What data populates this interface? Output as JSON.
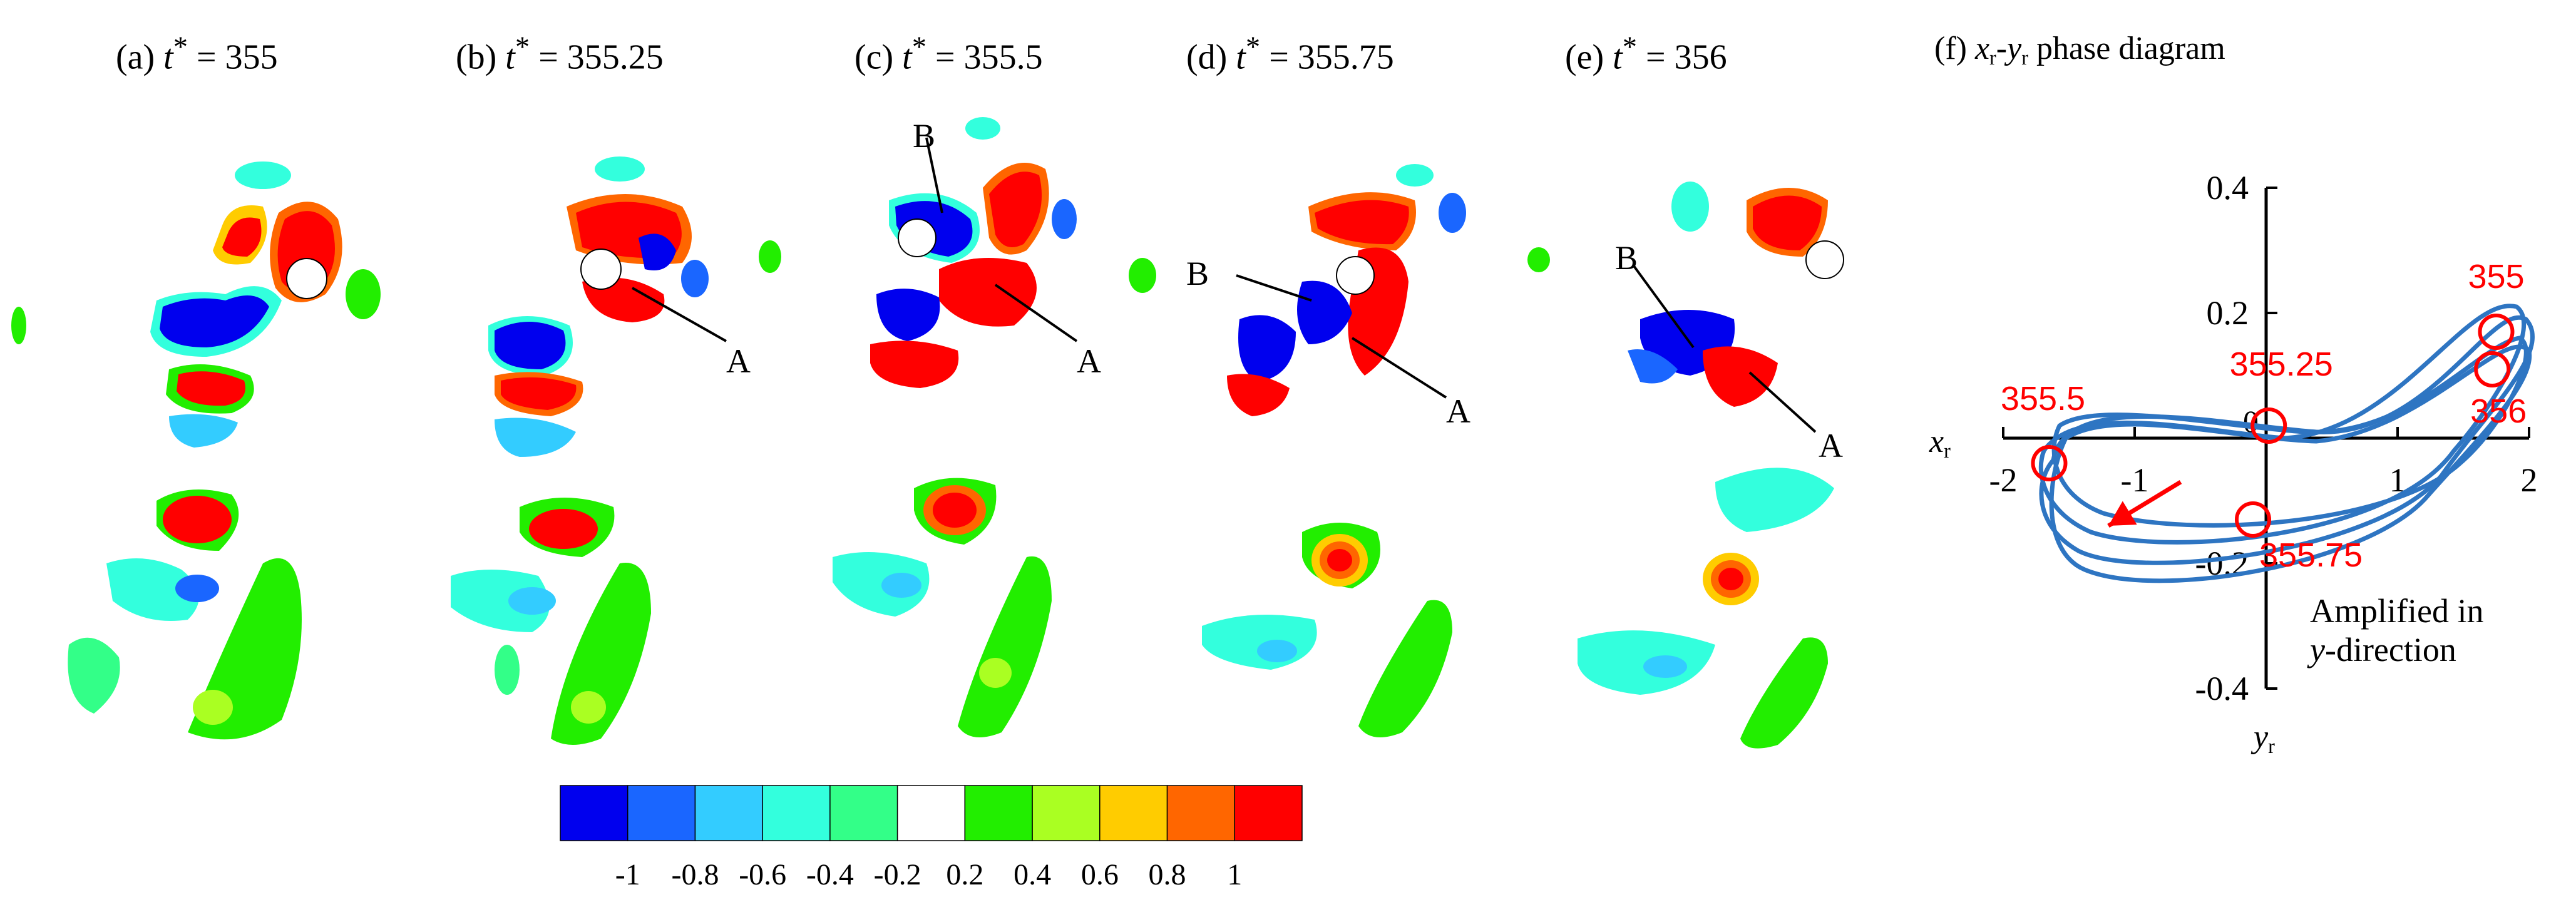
{
  "panels": [
    {
      "id": "a",
      "prefix": "(a) ",
      "var": "t",
      "sup": "*",
      "eq": " = ",
      "value": "355"
    },
    {
      "id": "b",
      "prefix": "(b) ",
      "var": "t",
      "sup": "*",
      "eq": " = ",
      "value": "355.25"
    },
    {
      "id": "c",
      "prefix": "(c) ",
      "var": "t",
      "sup": "*",
      "eq": " = ",
      "value": "355.5"
    },
    {
      "id": "d",
      "prefix": "(d) ",
      "var": "t",
      "sup": "*",
      "eq": " = ",
      "value": "355.75"
    },
    {
      "id": "e",
      "prefix": "(e) ",
      "var": "t",
      "sup": "*",
      "eq": " = ",
      "value": "356"
    }
  ],
  "panel_f": {
    "prefix": "(f) ",
    "x_var": "x",
    "x_sub": "r",
    "dash": "-",
    "y_var": "y",
    "y_sub": "r",
    "title_tail": " phase diagram",
    "x_axis_var": "x",
    "x_axis_sub": "r",
    "y_axis_var": "y",
    "y_axis_sub": "r",
    "note_line1": "Amplified in",
    "note_line2_var": "y",
    "note_line2_tail": "-direction",
    "origin_label": "0"
  },
  "annotations": {
    "A": "A",
    "B": "B"
  },
  "colorbar": {
    "colors": [
      "#0000ee",
      "#1a66ff",
      "#33ccff",
      "#33ffdd",
      "#33ff88",
      "#ffffff",
      "#22ee00",
      "#aaff22",
      "#ffcc00",
      "#ff6600",
      "#ff0000"
    ],
    "ticks": [
      "-1",
      "-0.8",
      "-0.6",
      "-0.4",
      "-0.2",
      "0.2",
      "0.4",
      "0.6",
      "0.8",
      "1"
    ]
  },
  "chart_data": {
    "type": "line",
    "title": "(f) xr-yr phase diagram",
    "xlabel": "xr",
    "ylabel": "yr",
    "xlim": [
      -2,
      2
    ],
    "ylim": [
      -0.4,
      0.4
    ],
    "x_ticks": [
      "-2",
      "-1",
      "0",
      "1",
      "2"
    ],
    "y_ticks": [
      "0.4",
      "0.2",
      "-0.2",
      "-0.4"
    ],
    "series_color": "#2e75c2",
    "marker_color": "#ff0000",
    "marked_points": [
      {
        "label": "355",
        "x": 1.75,
        "y": 0.17
      },
      {
        "label": "355.25",
        "x": 0.02,
        "y": 0.02
      },
      {
        "label": "355.5",
        "x": -1.65,
        "y": -0.04
      },
      {
        "label": "355.75",
        "x": -0.1,
        "y": -0.13
      },
      {
        "label": "356",
        "x": 1.72,
        "y": 0.11
      }
    ],
    "direction_arrow": {
      "from": [
        -0.65,
        -0.07
      ],
      "to": [
        -1.2,
        -0.14
      ]
    },
    "annotation": "Amplified in y-direction"
  }
}
